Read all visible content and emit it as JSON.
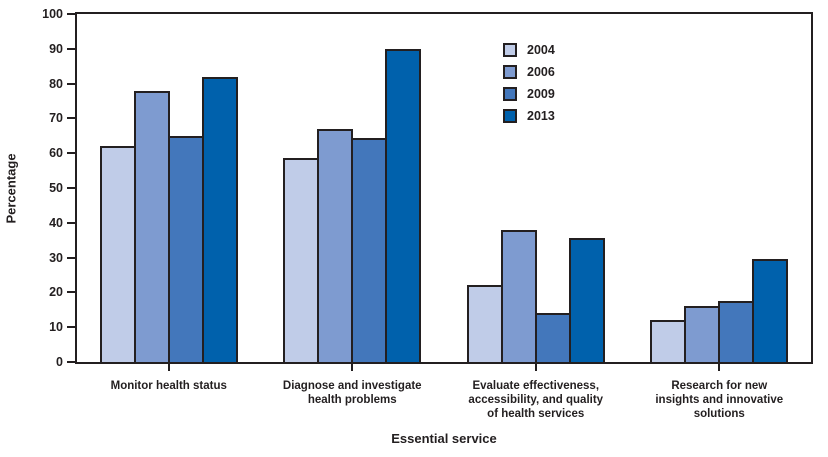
{
  "figure": {
    "background": "#ffffff",
    "axis_color": "#231f20"
  },
  "chart_data": {
    "type": "bar",
    "title": "",
    "xlabel": "Essential service",
    "ylabel": "Percentage",
    "ylim": [
      0,
      100
    ],
    "ytick_step": 10,
    "grid": false,
    "legend_position": "inside-top-center",
    "categories": [
      "Monitor health status",
      "Diagnose and investigate health problems",
      "Evaluate effectiveness, accessibility, and quality of health services",
      "Research for new insights and innovative solutions"
    ],
    "category_label_lines": [
      [
        "Monitor health status"
      ],
      [
        "Diagnose and investigate",
        "health problems"
      ],
      [
        "Evaluate effectiveness,",
        "accessibility, and quality",
        "of health services"
      ],
      [
        "Research for new",
        "insights and innovative",
        "solutions"
      ]
    ],
    "series": [
      {
        "name": "2004",
        "color": "#c0cce8",
        "values": [
          62,
          58.5,
          22,
          12
        ]
      },
      {
        "name": "2006",
        "color": "#7e9bd0",
        "values": [
          78,
          67,
          38,
          16
        ]
      },
      {
        "name": "2009",
        "color": "#4377bb",
        "values": [
          65,
          64.5,
          14,
          17.5
        ]
      },
      {
        "name": "2013",
        "color": "#0061ac",
        "values": [
          82,
          90,
          35.5,
          29.5
        ]
      }
    ]
  }
}
